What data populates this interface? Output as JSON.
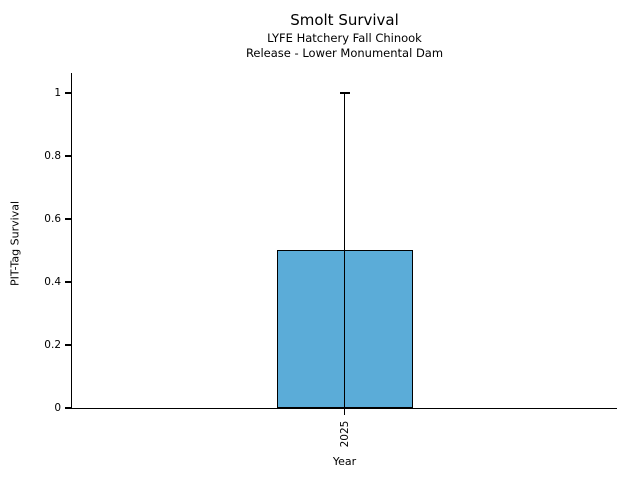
{
  "chart_data": {
    "type": "bar",
    "title": "Smolt Survival",
    "subtitle_lines": [
      "LYFE Hatchery Fall Chinook",
      "Release - Lower Monumental Dam"
    ],
    "xlabel": "Year",
    "ylabel": "PIT-Tag Survival",
    "categories": [
      "2025"
    ],
    "values": [
      0.5
    ],
    "error_bars": [
      {
        "lower": 0.0,
        "upper": 1.0
      }
    ],
    "ylim": [
      0,
      1.063
    ],
    "yticks": [
      0,
      0.2,
      0.4,
      0.6,
      0.8,
      1
    ],
    "ytick_labels": [
      "0",
      "0.2",
      "0.4",
      "0.6",
      "0.8",
      "1"
    ],
    "grid": false,
    "legend": false,
    "colors": {
      "bar_fill": "#5BACD8",
      "bar_edge": "#000000",
      "error_bar": "#000000",
      "text": "#000000",
      "background": "#FFFFFF"
    }
  }
}
